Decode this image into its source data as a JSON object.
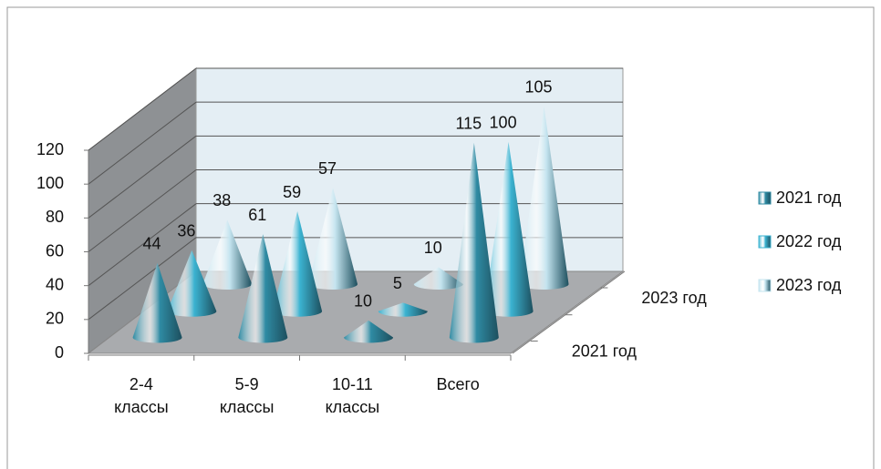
{
  "chart_data": {
    "type": "cone3d",
    "categories": [
      "2-4 классы",
      "5-9 классы",
      "10-11 классы",
      "Всего"
    ],
    "depth_categories": [
      "2021 год",
      null,
      "2023 год"
    ],
    "series": [
      {
        "name": "2021 год",
        "color": "#2f8ba3",
        "values": [
          44,
          61,
          10,
          115
        ]
      },
      {
        "name": "2022 год",
        "color": "#3bb3d1",
        "values": [
          36,
          59,
          5,
          100
        ]
      },
      {
        "name": "2023 год",
        "color": "#c4e4ef",
        "values": [
          38,
          57,
          10,
          105
        ]
      }
    ],
    "ylim": [
      0,
      120
    ],
    "yticks": [
      0,
      20,
      40,
      60,
      80,
      100,
      120
    ],
    "grid": true,
    "legend": "right"
  }
}
